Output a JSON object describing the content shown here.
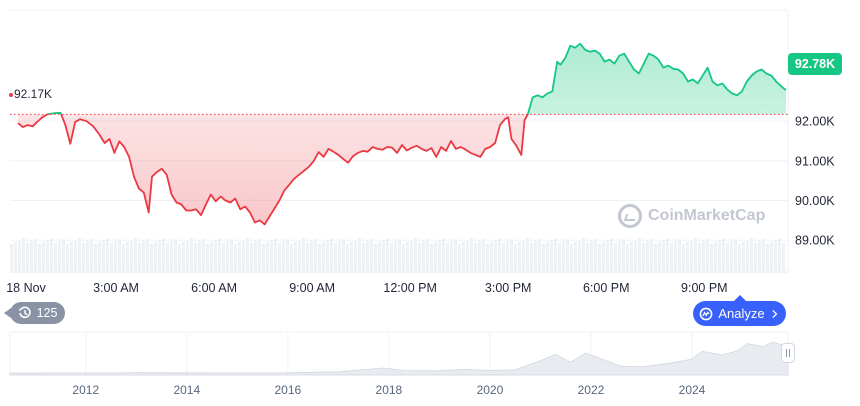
{
  "chart_data": {
    "type": "area",
    "title": "",
    "xlabel": "",
    "ylabel": "",
    "baseline": 92170,
    "baseline_label": "92.17K",
    "last_value_label": "92.78K",
    "ylim": [
      88200,
      94800
    ],
    "yticks": [
      {
        "value": 92000,
        "label": "92.00K"
      },
      {
        "value": 91000,
        "label": "91.00K"
      },
      {
        "value": 90000,
        "label": "90.00K"
      },
      {
        "value": 89000,
        "label": "89.00K"
      }
    ],
    "x_hours_range": [
      0,
      23.5
    ],
    "xticks": [
      {
        "hour": 0,
        "label": "18 Nov"
      },
      {
        "hour": 3,
        "label": "3:00 AM"
      },
      {
        "hour": 6,
        "label": "6:00 AM"
      },
      {
        "hour": 9,
        "label": "9:00 AM"
      },
      {
        "hour": 12,
        "label": "12:00 PM"
      },
      {
        "hour": 15,
        "label": "3:00 PM"
      },
      {
        "hour": 18,
        "label": "6:00 PM"
      },
      {
        "hour": 21,
        "label": "9:00 PM"
      }
    ],
    "series": [
      {
        "colors": {
          "below": "#ea3943",
          "above": "#16c784"
        },
        "points": [
          [
            0.0,
            91950
          ],
          [
            0.15,
            91850
          ],
          [
            0.3,
            91900
          ],
          [
            0.45,
            91870
          ],
          [
            0.6,
            91990
          ],
          [
            0.75,
            92100
          ],
          [
            0.9,
            92170
          ],
          [
            1.1,
            92200
          ],
          [
            1.3,
            92210
          ],
          [
            1.45,
            91900
          ],
          [
            1.6,
            91430
          ],
          [
            1.75,
            91980
          ],
          [
            1.9,
            92050
          ],
          [
            2.1,
            92000
          ],
          [
            2.3,
            91870
          ],
          [
            2.5,
            91650
          ],
          [
            2.65,
            91450
          ],
          [
            2.8,
            91550
          ],
          [
            2.95,
            91200
          ],
          [
            3.1,
            91490
          ],
          [
            3.25,
            91350
          ],
          [
            3.4,
            91100
          ],
          [
            3.55,
            90600
          ],
          [
            3.7,
            90300
          ],
          [
            3.85,
            90200
          ],
          [
            4.0,
            89700
          ],
          [
            4.1,
            90600
          ],
          [
            4.25,
            90720
          ],
          [
            4.4,
            90800
          ],
          [
            4.55,
            90650
          ],
          [
            4.7,
            90150
          ],
          [
            4.85,
            89950
          ],
          [
            5.0,
            89900
          ],
          [
            5.15,
            89750
          ],
          [
            5.3,
            89750
          ],
          [
            5.45,
            89780
          ],
          [
            5.6,
            89630
          ],
          [
            5.75,
            89900
          ],
          [
            5.9,
            90150
          ],
          [
            6.05,
            89980
          ],
          [
            6.2,
            90100
          ],
          [
            6.35,
            90000
          ],
          [
            6.5,
            89950
          ],
          [
            6.65,
            90050
          ],
          [
            6.8,
            89780
          ],
          [
            6.95,
            89850
          ],
          [
            7.1,
            89700
          ],
          [
            7.25,
            89450
          ],
          [
            7.4,
            89500
          ],
          [
            7.55,
            89400
          ],
          [
            7.7,
            89600
          ],
          [
            7.85,
            89800
          ],
          [
            8.0,
            90000
          ],
          [
            8.15,
            90250
          ],
          [
            8.3,
            90400
          ],
          [
            8.45,
            90550
          ],
          [
            8.6,
            90650
          ],
          [
            8.75,
            90750
          ],
          [
            8.9,
            90850
          ],
          [
            9.05,
            91000
          ],
          [
            9.2,
            91220
          ],
          [
            9.35,
            91100
          ],
          [
            9.5,
            91300
          ],
          [
            9.65,
            91230
          ],
          [
            9.8,
            91150
          ],
          [
            9.95,
            91050
          ],
          [
            10.1,
            90950
          ],
          [
            10.25,
            91120
          ],
          [
            10.4,
            91200
          ],
          [
            10.55,
            91250
          ],
          [
            10.7,
            91230
          ],
          [
            10.85,
            91350
          ],
          [
            11.0,
            91300
          ],
          [
            11.15,
            91280
          ],
          [
            11.3,
            91350
          ],
          [
            11.45,
            91330
          ],
          [
            11.6,
            91200
          ],
          [
            11.75,
            91400
          ],
          [
            11.9,
            91260
          ],
          [
            12.05,
            91330
          ],
          [
            12.2,
            91380
          ],
          [
            12.35,
            91300
          ],
          [
            12.5,
            91250
          ],
          [
            12.65,
            91320
          ],
          [
            12.8,
            91100
          ],
          [
            12.95,
            91350
          ],
          [
            13.1,
            91250
          ],
          [
            13.25,
            91500
          ],
          [
            13.4,
            91300
          ],
          [
            13.55,
            91350
          ],
          [
            13.7,
            91280
          ],
          [
            13.85,
            91200
          ],
          [
            14.0,
            91150
          ],
          [
            14.15,
            91100
          ],
          [
            14.3,
            91300
          ],
          [
            14.45,
            91350
          ],
          [
            14.6,
            91450
          ],
          [
            14.75,
            91900
          ],
          [
            14.9,
            92050
          ],
          [
            15.0,
            92100
          ],
          [
            15.1,
            91550
          ],
          [
            15.25,
            91380
          ],
          [
            15.4,
            91150
          ],
          [
            15.5,
            92030
          ],
          [
            15.6,
            92170
          ],
          [
            15.75,
            92600
          ],
          [
            15.9,
            92650
          ],
          [
            16.05,
            92600
          ],
          [
            16.2,
            92700
          ],
          [
            16.35,
            92750
          ],
          [
            16.5,
            93500
          ],
          [
            16.6,
            93420
          ],
          [
            16.75,
            93600
          ],
          [
            16.9,
            93900
          ],
          [
            17.05,
            93850
          ],
          [
            17.2,
            93950
          ],
          [
            17.35,
            93800
          ],
          [
            17.5,
            93750
          ],
          [
            17.65,
            93780
          ],
          [
            17.8,
            93700
          ],
          [
            17.95,
            93500
          ],
          [
            18.1,
            93550
          ],
          [
            18.25,
            93450
          ],
          [
            18.4,
            93650
          ],
          [
            18.55,
            93700
          ],
          [
            18.7,
            93500
          ],
          [
            18.85,
            93300
          ],
          [
            19.0,
            93200
          ],
          [
            19.15,
            93450
          ],
          [
            19.3,
            93700
          ],
          [
            19.45,
            93650
          ],
          [
            19.6,
            93550
          ],
          [
            19.75,
            93350
          ],
          [
            19.9,
            93400
          ],
          [
            20.05,
            93320
          ],
          [
            20.2,
            93300
          ],
          [
            20.35,
            93200
          ],
          [
            20.5,
            93000
          ],
          [
            20.65,
            93050
          ],
          [
            20.8,
            92950
          ],
          [
            20.95,
            93150
          ],
          [
            21.1,
            93350
          ],
          [
            21.25,
            93000
          ],
          [
            21.4,
            92900
          ],
          [
            21.55,
            92950
          ],
          [
            21.7,
            92800
          ],
          [
            21.85,
            92700
          ],
          [
            22.0,
            92650
          ],
          [
            22.15,
            92750
          ],
          [
            22.3,
            93000
          ],
          [
            22.45,
            93150
          ],
          [
            22.6,
            93250
          ],
          [
            22.75,
            93300
          ],
          [
            22.9,
            93200
          ],
          [
            23.05,
            93150
          ],
          [
            23.2,
            93000
          ],
          [
            23.35,
            92880
          ],
          [
            23.5,
            92780
          ]
        ]
      }
    ],
    "navigator": {
      "years": [
        2012,
        2014,
        2016,
        2018,
        2020,
        2022,
        2024
      ],
      "x_year_range": [
        2010.5,
        2025.9
      ],
      "points": [
        [
          2010.5,
          0
        ],
        [
          2011,
          0.001
        ],
        [
          2012,
          0.002
        ],
        [
          2013,
          0.01
        ],
        [
          2014,
          0.008
        ],
        [
          2015,
          0.004
        ],
        [
          2016,
          0.008
        ],
        [
          2017,
          0.04
        ],
        [
          2017.9,
          0.16
        ],
        [
          2018.3,
          0.08
        ],
        [
          2019,
          0.07
        ],
        [
          2019.5,
          0.12
        ],
        [
          2020,
          0.08
        ],
        [
          2020.5,
          0.1
        ],
        [
          2021,
          0.4
        ],
        [
          2021.3,
          0.6
        ],
        [
          2021.6,
          0.35
        ],
        [
          2021.9,
          0.65
        ],
        [
          2022.3,
          0.4
        ],
        [
          2022.6,
          0.22
        ],
        [
          2023,
          0.2
        ],
        [
          2023.5,
          0.3
        ],
        [
          2024,
          0.45
        ],
        [
          2024.2,
          0.7
        ],
        [
          2024.6,
          0.58
        ],
        [
          2024.9,
          0.72
        ],
        [
          2025.1,
          0.95
        ],
        [
          2025.4,
          0.85
        ],
        [
          2025.6,
          1.0
        ],
        [
          2025.8,
          0.9
        ],
        [
          2025.9,
          0.92
        ]
      ]
    }
  },
  "controls": {
    "events_count": "125",
    "analyze_label": "Analyze"
  },
  "watermark": {
    "text": "CoinMarketCap"
  },
  "colors": {
    "down": "#ea3943",
    "up": "#16c784",
    "accent": "#3861fb",
    "grid": "#eff2f5",
    "volume": "#eff2f5"
  },
  "icons": {
    "events": "history-icon",
    "analyze": "cmc-logo-icon",
    "chevron": "chevron-right-icon"
  }
}
